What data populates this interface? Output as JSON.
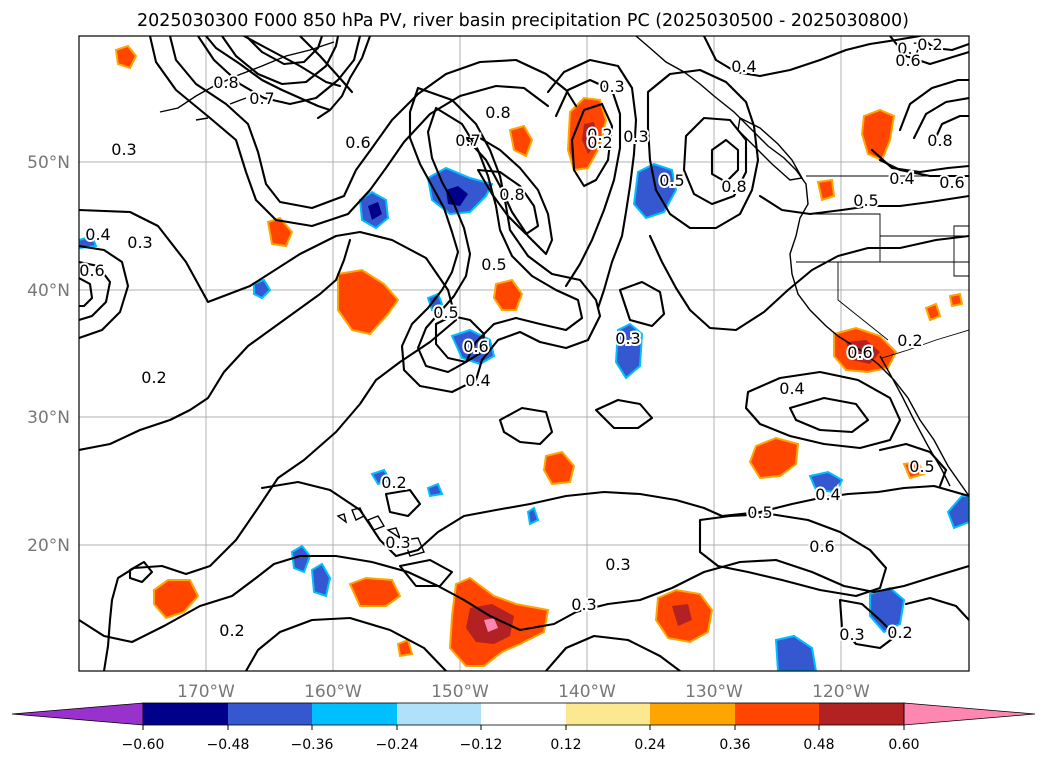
{
  "title": "2025030300 F000 850 hPa PV, river basin precipitation PC (2025030500 - 2025030800)",
  "axes": {
    "x_ticks": [
      "170°W",
      "160°W",
      "150°W",
      "140°W",
      "130°W",
      "120°W"
    ],
    "y_ticks": [
      "50°N",
      "40°N",
      "30°N",
      "20°N"
    ]
  },
  "colorbar": {
    "tick_labels": [
      "−0.60",
      "−0.48",
      "−0.36",
      "−0.24",
      "−0.12",
      "0.12",
      "0.24",
      "0.36",
      "0.48",
      "0.60"
    ],
    "colors": [
      "#9932cc",
      "#00008b",
      "#3557cf",
      "#00bfff",
      "#b0e0fa",
      "#ffffff",
      "#fbe891",
      "#ffa500",
      "#ff4500",
      "#b22222",
      "#ff86b0"
    ]
  },
  "contour_labels": [
    "0.2",
    "0.3",
    "0.4",
    "0.5",
    "0.6",
    "0.7",
    "0.8"
  ],
  "map_labels": [
    "0.2",
    "0.3",
    "0.4",
    "0.3",
    "0.6",
    "0.7",
    "0.8",
    "0.8",
    "0.7",
    "0.2",
    "0.3",
    "0.6",
    "0.8",
    "0.4",
    "0.5",
    "0.8",
    "0.7",
    "0.6",
    "0.4",
    "0.5",
    "0.8",
    "0.5",
    "0.5",
    "0.6",
    "0.4",
    "0.2",
    "0.3",
    "0.4",
    "0.3",
    "0.6",
    "0.5",
    "0.2",
    "0.3",
    "0.3",
    "0.2",
    "0.4",
    "0.5",
    "0.6",
    "0.3",
    "0.2",
    "0.2",
    "0.3",
    "0.2",
    "0.6"
  ]
}
